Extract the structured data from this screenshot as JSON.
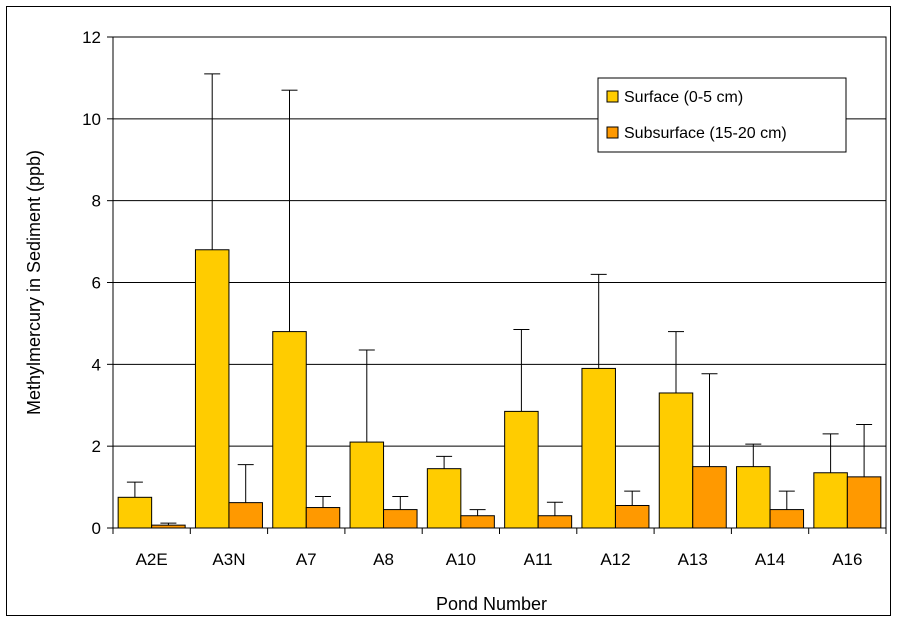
{
  "chart_data": {
    "type": "bar",
    "title": "",
    "xlabel": "Pond Number",
    "ylabel": "Methylmercury in Sediment (ppb)",
    "ylim": [
      0,
      12
    ],
    "yticks": [
      "0",
      "2",
      "4",
      "6",
      "8",
      "10",
      "12"
    ],
    "grid": "horizontal major gridlines",
    "legend_position": "top-right",
    "categories": [
      "A2E",
      "A3N",
      "A7",
      "A8",
      "A10",
      "A11",
      "A12",
      "A13",
      "A14",
      "A16"
    ],
    "series": [
      {
        "name": "Surface (0-5 cm)",
        "color": "#FFCC00",
        "values": [
          0.75,
          6.8,
          4.8,
          2.1,
          1.45,
          2.85,
          3.9,
          3.3,
          1.5,
          1.35
        ],
        "error_upper": [
          1.12,
          11.1,
          10.7,
          4.35,
          1.75,
          4.85,
          6.2,
          4.8,
          2.05,
          2.3
        ]
      },
      {
        "name": "Subsurface (15-20 cm)",
        "color": "#FF9900",
        "values": [
          0.07,
          0.62,
          0.5,
          0.45,
          0.3,
          0.3,
          0.55,
          1.5,
          0.45,
          1.25
        ],
        "error_upper": [
          0.12,
          1.55,
          0.77,
          0.77,
          0.45,
          0.63,
          0.9,
          3.77,
          0.9,
          2.53
        ]
      }
    ]
  }
}
